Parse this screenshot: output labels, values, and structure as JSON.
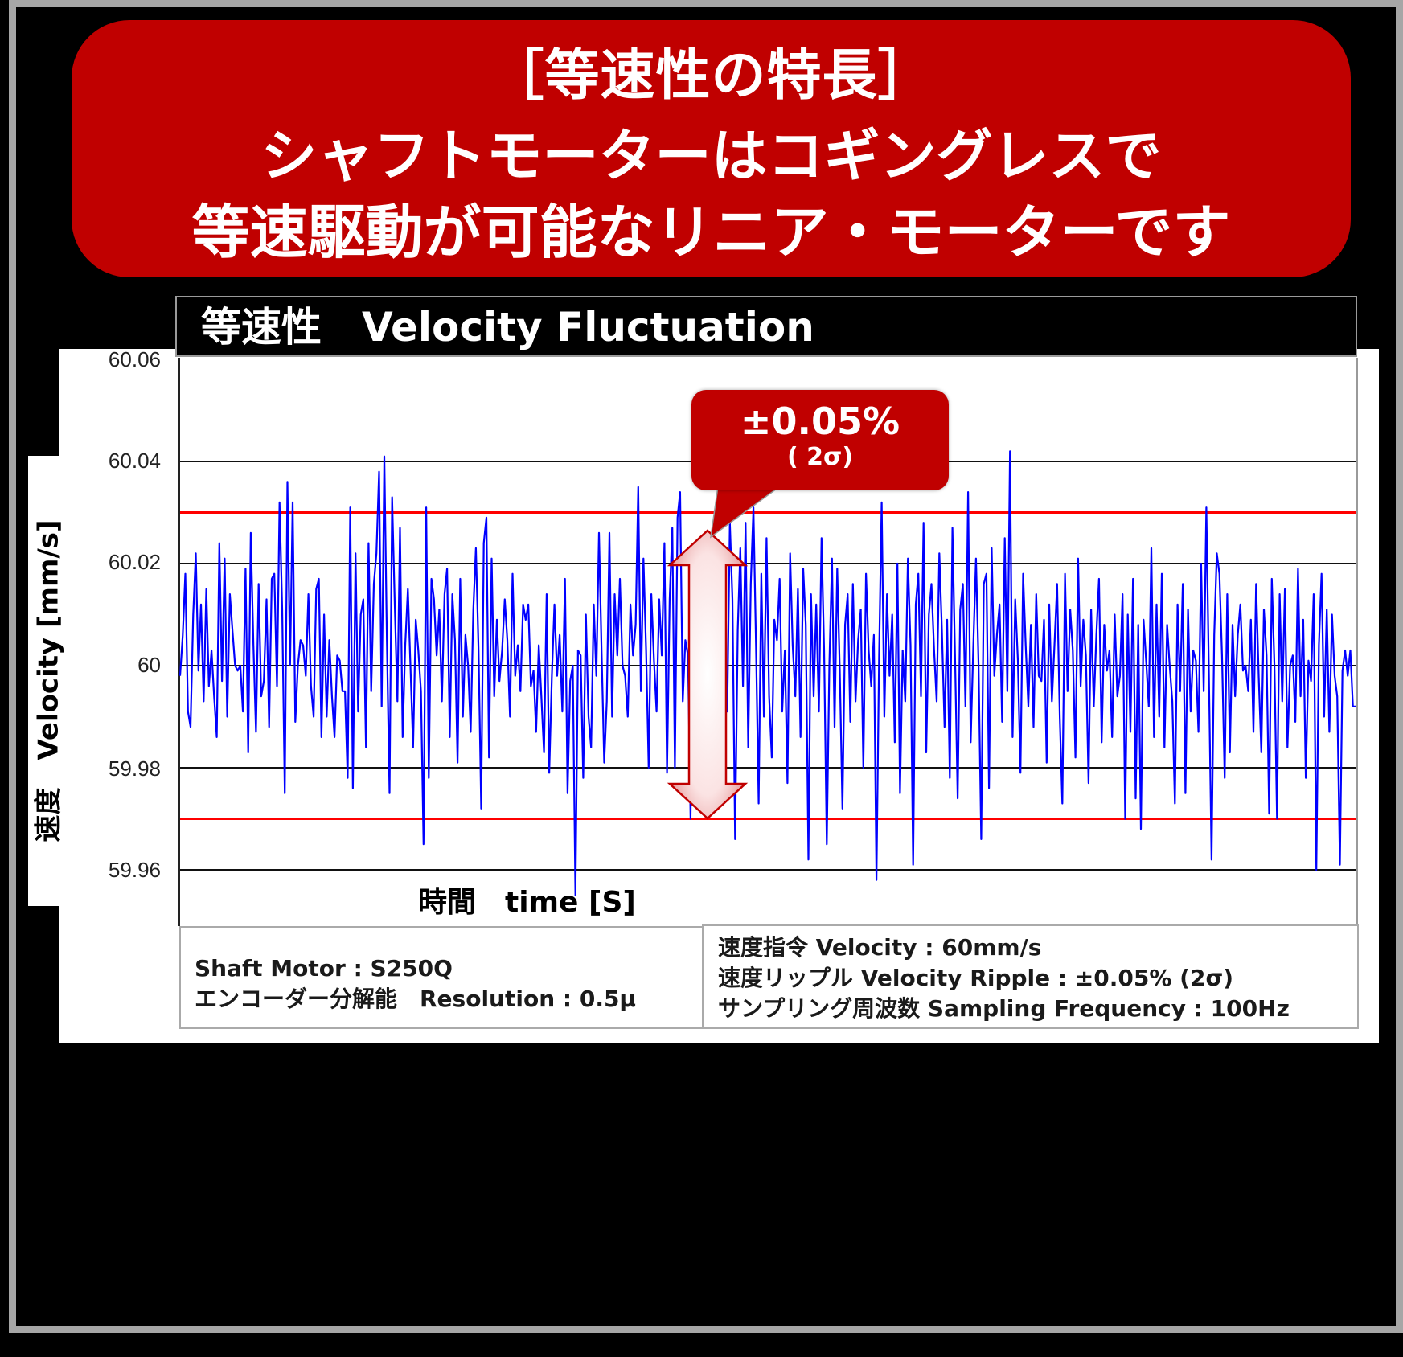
{
  "banner": {
    "line1": "［等速性の特長］",
    "line2": "シャフトモーターはコギングレスで",
    "line3": "等速駆動が可能なリニア・モーターです"
  },
  "chart_title": "等速性　Velocity Fluctuation",
  "y_axis_label": "速度　Velocity [mm/s]",
  "x_axis_label": "時間　time [S]",
  "y_ticks": [
    "60.06",
    "60.04",
    "60.02",
    "60",
    "59.98",
    "59.96"
  ],
  "callout": {
    "value": "±0.05%",
    "sigma": "( 2σ)"
  },
  "info_left": {
    "line1": "Shaft Motor : S250Q",
    "line2": "エンコーダー分解能　Resolution : 0.5μ"
  },
  "info_right": {
    "line1": "速度指令 Velocity : 60mm/s",
    "line2": "速度リップル Velocity Ripple : ±0.05% (2σ)",
    "line3": "サンプリング周波数 Sampling Frequency : 100Hz"
  },
  "colors": {
    "banner": "#C00000",
    "series": "#0000FF",
    "limit_lines": "#FF0000",
    "frame": "#A6A6A6"
  },
  "chart_data": {
    "type": "line",
    "title": "等速性 Velocity Fluctuation",
    "xlabel": "時間 time [S]",
    "ylabel": "速度 Velocity [mm/s]",
    "ylim": [
      59.96,
      60.06
    ],
    "yticks": [
      60.06,
      60.04,
      60.02,
      60.0,
      59.98,
      59.96
    ],
    "grid": true,
    "reference_lines": [
      {
        "name": "+2σ limit",
        "value": 60.03,
        "color": "#FF0000"
      },
      {
        "name": "-2σ limit",
        "value": 59.97,
        "color": "#FF0000"
      }
    ],
    "annotation": "±0.05% (2σ)",
    "series": [
      {
        "name": "Velocity",
        "color": "#0000FF",
        "values": [
          59.998,
          60.006,
          60.018,
          59.991,
          59.988,
          60.01,
          60.022,
          59.999,
          60.012,
          59.993,
          60.015,
          59.996,
          60.003,
          59.994,
          59.986,
          60.024,
          59.997,
          60.021,
          59.99,
          60.014,
          60.007,
          60.0,
          59.999,
          60.0,
          59.991,
          60.019,
          59.983,
          60.026,
          60.004,
          59.987,
          60.016,
          59.994,
          59.997,
          60.013,
          59.988,
          60.017,
          60.018,
          59.996,
          60.032,
          60.011,
          59.975,
          60.036,
          60.0,
          60.032,
          59.989,
          60.0,
          60.005,
          60.004,
          59.998,
          60.014,
          59.996,
          59.99,
          60.015,
          60.017,
          59.986,
          60.01,
          59.99,
          60.005,
          59.994,
          59.986,
          60.002,
          60.001,
          59.995,
          59.995,
          59.978,
          60.031,
          59.976,
          60.022,
          59.991,
          60.01,
          60.013,
          59.984,
          60.024,
          59.995,
          60.016,
          60.022,
          60.038,
          59.992,
          60.041,
          60.005,
          59.975,
          60.033,
          60.012,
          59.993,
          60.027,
          59.986,
          60.004,
          60.015,
          60.0,
          59.984,
          60.009,
          60.003,
          59.995,
          59.965,
          60.031,
          59.978,
          60.017,
          60.013,
          60.002,
          60.011,
          59.993,
          60.014,
          60.019,
          59.986,
          60.014,
          60.005,
          59.981,
          60.017,
          59.99,
          60.006,
          60.0,
          59.987,
          60.011,
          60.023,
          60.003,
          59.972,
          60.024,
          60.029,
          59.982,
          60.021,
          59.994,
          60.009,
          59.997,
          60.003,
          60.013,
          60.005,
          59.99,
          60.018,
          59.998,
          60.004,
          59.995,
          60.012,
          60.009,
          60.012,
          59.996,
          59.999,
          59.987,
          60.004,
          59.994,
          59.983,
          60.014,
          59.979,
          59.998,
          60.012,
          59.998,
          60.006,
          59.991,
          60.017,
          59.975,
          59.997,
          60.0,
          59.955,
          60.003,
          60.002,
          59.978,
          60.01,
          59.99,
          59.984,
          60.012,
          59.998,
          60.026,
          60.003,
          59.981,
          59.993,
          60.026,
          59.99,
          60.014,
          60.002,
          60.017,
          60.0,
          59.998,
          59.99,
          60.012,
          60.002,
          60.008,
          60.035,
          59.995,
          60.021,
          60.003,
          59.98,
          60.014,
          60.001,
          59.991,
          60.013,
          60.002,
          60.024,
          59.979,
          60.013,
          60.027,
          59.98,
          60.029,
          60.034,
          59.993,
          60.005,
          60.002,
          59.97,
          60.011,
          59.988,
          60.003,
          60.014,
          59.995,
          60.021,
          60.009,
          59.987,
          59.998,
          60.016,
          59.982,
          60.018,
          60.004,
          59.991,
          60.028,
          60.013,
          59.966,
          60.007,
          60.023,
          59.996,
          60.028,
          59.984,
          60.016,
          60.031,
          60.004,
          59.973,
          60.018,
          59.99,
          60.025,
          59.994,
          59.982,
          60.009,
          60.005,
          60.017,
          59.991,
          60.003,
          59.977,
          60.022,
          60.004,
          59.994,
          60.015,
          59.986,
          60.019,
          60.008,
          59.962,
          60.014,
          59.994,
          60.012,
          59.991,
          60.025,
          60.003,
          59.965,
          60.0,
          60.021,
          59.988,
          60.019,
          59.999,
          59.972,
          60.008,
          60.014,
          59.989,
          60.016,
          59.993,
          60.005,
          60.011,
          59.98,
          60.018,
          60.003,
          59.996,
          60.006,
          59.958,
          60.002,
          60.032,
          59.99,
          60.014,
          59.998,
          60.01,
          59.985,
          60.02,
          59.975,
          60.003,
          59.993,
          60.021,
          60.004,
          59.961,
          60.012,
          60.018,
          59.994,
          60.028,
          59.983,
          60.01,
          60.016,
          60.003,
          59.993,
          60.022,
          60.007,
          59.988,
          60.009,
          59.978,
          60.027,
          60.002,
          59.974,
          60.011,
          60.016,
          59.992,
          60.034,
          59.985,
          60.004,
          60.021,
          60.0,
          59.966,
          60.016,
          60.018,
          59.976,
          60.023,
          59.998,
          60.006,
          60.012,
          59.989,
          60.025,
          59.995,
          60.042,
          59.986,
          60.013,
          60.001,
          59.979,
          60.018,
          60.004,
          59.992,
          60.008,
          59.988,
          60.014,
          59.998,
          59.997,
          60.009,
          59.981,
          60.012,
          59.993,
          60.004,
          60.016,
          59.99,
          59.973,
          60.018,
          59.995,
          60.011,
          60.003,
          59.982,
          60.021,
          59.996,
          60.009,
          60.002,
          59.977,
          60.011,
          59.992,
          60.006,
          60.017,
          59.985,
          60.008,
          59.999,
          60.003,
          59.986,
          60.01,
          59.994,
          59.998,
          60.014,
          59.97,
          60.01,
          59.987,
          60.017,
          59.974,
          60.008,
          59.968,
          60.009,
          60.001,
          59.992,
          60.023,
          59.986,
          60.012,
          59.99,
          60.018,
          59.984,
          60.008,
          60.0,
          59.993,
          59.973,
          60.012,
          59.995,
          60.016,
          59.975,
          60.011,
          59.991,
          60.003,
          60.001,
          59.987,
          60.02,
          59.995,
          60.031,
          59.997,
          59.962,
          60.006,
          60.022,
          60.018,
          60.002,
          59.978,
          60.014,
          59.983,
          60.008,
          59.994,
          60.006,
          60.012,
          59.999,
          60.0,
          59.995,
          60.009,
          59.987,
          60.016,
          59.998,
          59.983,
          60.011,
          60.002,
          59.971,
          60.017,
          60.0,
          59.97,
          60.014,
          59.993,
          60.015,
          59.984,
          60.0,
          60.002,
          59.989,
          60.019,
          59.994,
          60.009,
          59.978,
          60.001,
          59.997,
          60.014,
          59.96,
          60.004,
          60.018,
          59.99,
          60.011,
          59.987,
          60.01,
          59.998,
          59.994,
          59.961,
          59.999,
          60.003,
          59.998,
          60.003,
          59.992,
          59.992
        ]
      }
    ]
  }
}
